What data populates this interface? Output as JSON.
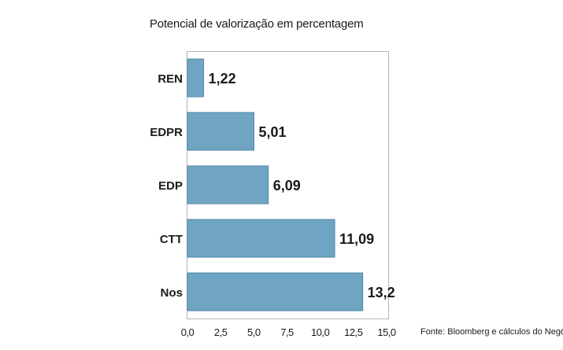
{
  "chart_data": {
    "type": "bar",
    "orientation": "horizontal",
    "title": "Potencial de valorização em percentagem",
    "categories": [
      "REN",
      "EDPR",
      "EDP",
      "CTT",
      "Nos"
    ],
    "values": [
      1.22,
      5.01,
      6.09,
      11.09,
      13.2
    ],
    "value_labels": [
      "1,22",
      "5,01",
      "6,09",
      "11,09",
      "13,2"
    ],
    "xlim": [
      0,
      15
    ],
    "x_ticks": [
      0,
      2.5,
      5,
      7.5,
      10,
      12.5,
      15
    ],
    "x_tick_labels": [
      "0,0",
      "2,5",
      "5,0",
      "7,5",
      "10,0",
      "12,5",
      "15,0"
    ],
    "grid": false,
    "bar_color": "#6fa5c2",
    "bar_edge_color": "#4d87a8",
    "source": "Fonte: Bloomberg  e cálculos do Negócios"
  }
}
